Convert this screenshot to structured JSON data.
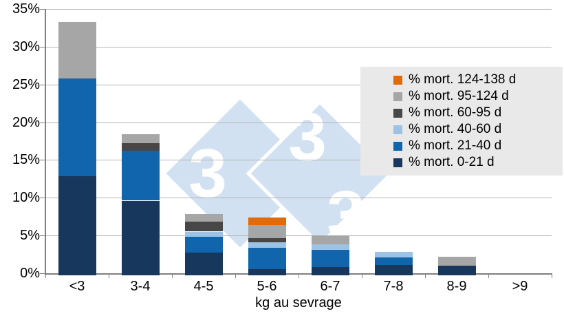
{
  "chart_data": {
    "type": "stacked-bar",
    "title": "",
    "xlabel": "kg au sevrage",
    "ylabel": "",
    "ylim": [
      0,
      35
    ],
    "y_tick_step": 5,
    "y_tick_labels": [
      "0%",
      "5%",
      "10%",
      "15%",
      "20%",
      "25%",
      "30%",
      "35%"
    ],
    "grid": true,
    "legend_position": "upper-right-overlay",
    "categories": [
      "<3",
      "3-4",
      "4-5",
      "5-6",
      "6-7",
      "7-8",
      "8-9",
      ">9"
    ],
    "series": [
      {
        "name": "% mort. 0-21 d",
        "color": "#17375D",
        "values": [
          12.9,
          9.6,
          2.7,
          0.6,
          0.8,
          1.1,
          1.0,
          0
        ]
      },
      {
        "name": "% mort. 21-40 d",
        "color": "#1065AD",
        "values": [
          12.9,
          6.6,
          2.2,
          2.8,
          2.3,
          1.0,
          0,
          0
        ]
      },
      {
        "name": "% mort. 40-60 d",
        "color": "#9CC3E5",
        "values": [
          0,
          0,
          0.6,
          0.7,
          0.7,
          0.7,
          0,
          0
        ]
      },
      {
        "name": "% mort. 60-95 d",
        "color": "#474747",
        "values": [
          0,
          1.0,
          1.3,
          0.6,
          0,
          0,
          0,
          0
        ]
      },
      {
        "name": "% mort. 95-124 d",
        "color": "#A6A6A6",
        "values": [
          7.5,
          1.2,
          1.0,
          1.7,
          1.2,
          0,
          1.2,
          0
        ]
      },
      {
        "name": "% mort. 124-138 d",
        "color": "#E36A0A",
        "values": [
          0,
          0,
          0,
          1.0,
          0,
          0,
          0,
          0
        ]
      }
    ],
    "legend_order": [
      "% mort. 124-138 d",
      "% mort. 95-124 d",
      "% mort. 60-95 d",
      "% mort. 40-60 d",
      "% mort. 21-40 d",
      "% mort. 0-21 d"
    ]
  },
  "watermark": {
    "glyphs": [
      "3",
      "3",
      "3"
    ]
  },
  "colors": {
    "gridline": "#B3B3B3",
    "axis": "#7F7F7F",
    "legend_bg": "#E9E9E9",
    "watermark_diamond": "#D2E1F1"
  }
}
